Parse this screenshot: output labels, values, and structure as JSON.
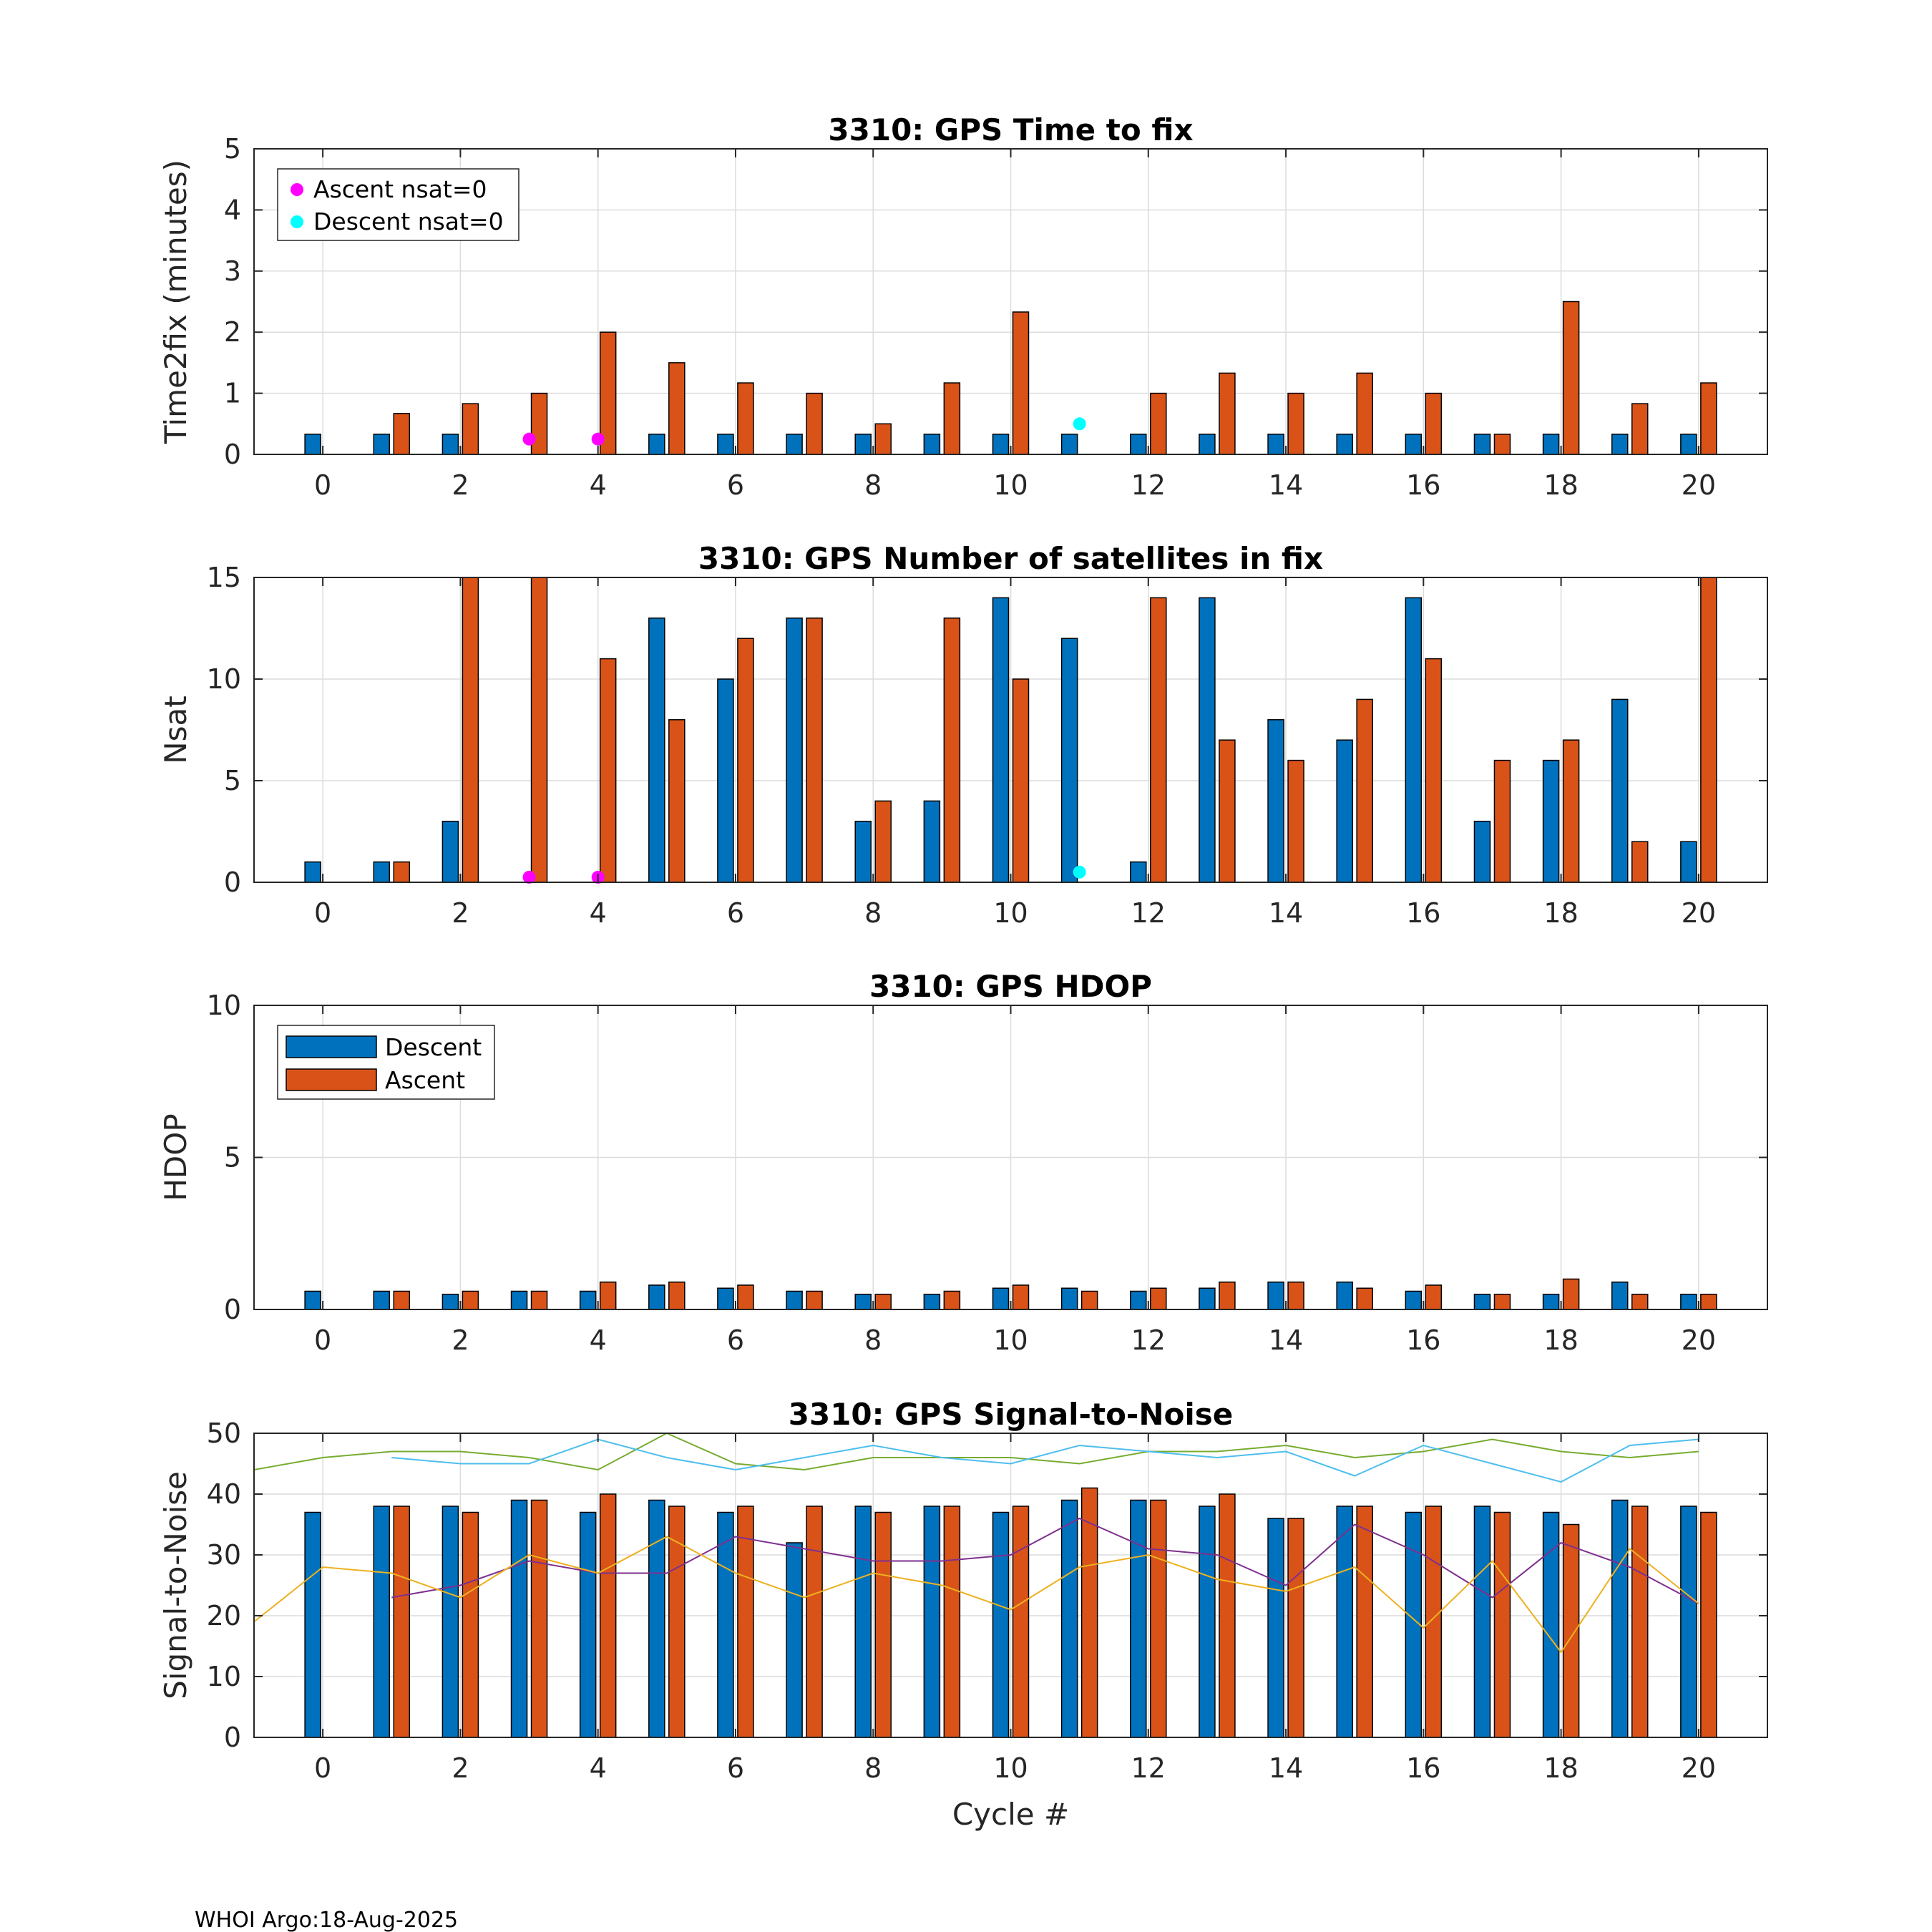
{
  "footer": "WHOI Argo:18-Aug-2025",
  "colors": {
    "descent": "#0072BD",
    "ascent": "#D95319",
    "magenta": "#FF00FF",
    "cyan": "#00FFFF",
    "sn_green": "#77AC30",
    "sn_cyan": "#4DBEEE",
    "sn_purple": "#7E2F8E",
    "sn_yellow": "#EDB120"
  },
  "chart_data": [
    {
      "type": "bar",
      "title": "3310: GPS Time to fix",
      "xlabel": "",
      "ylabel": "Time2fix (minutes)",
      "xlim": [
        -1,
        21
      ],
      "ylim": [
        0,
        5
      ],
      "yticks": [
        0,
        1,
        2,
        3,
        4,
        5
      ],
      "xticks": [
        0,
        2,
        4,
        6,
        8,
        10,
        12,
        14,
        16,
        18,
        20
      ],
      "x": [
        0,
        1,
        2,
        3,
        4,
        5,
        6,
        7,
        8,
        9,
        10,
        11,
        12,
        13,
        14,
        15,
        16,
        17,
        18,
        19,
        20
      ],
      "series": [
        {
          "name": "Descent",
          "values": [
            0.33,
            0.33,
            0.33,
            null,
            null,
            0.33,
            0.33,
            0.33,
            0.33,
            0.33,
            0.33,
            0.33,
            0.33,
            0.33,
            0.33,
            0.33,
            0.33,
            0.33,
            0.33,
            0.33,
            0.33
          ]
        },
        {
          "name": "Ascent",
          "values": [
            null,
            0.67,
            0.83,
            1.0,
            2.0,
            1.5,
            1.17,
            1.0,
            0.5,
            1.17,
            2.33,
            null,
            1.0,
            1.33,
            1.0,
            1.33,
            1.0,
            0.33,
            2.5,
            0.83,
            1.17
          ]
        }
      ],
      "markers": [
        {
          "name": "Ascent nsat=0",
          "color": "magenta",
          "points": [
            [
              3,
              0.25
            ],
            [
              4,
              0.25
            ]
          ]
        },
        {
          "name": "Descent nsat=0",
          "color": "cyan",
          "points": [
            [
              11,
              0.5
            ]
          ]
        }
      ],
      "legend": {
        "position": "top-left",
        "entries": [
          "Ascent nsat=0",
          "Descent nsat=0"
        ]
      }
    },
    {
      "type": "bar",
      "title": "3310: GPS Number of satellites in fix",
      "xlabel": "",
      "ylabel": "Nsat",
      "xlim": [
        -1,
        21
      ],
      "ylim": [
        0,
        15
      ],
      "yticks": [
        0,
        5,
        10,
        15
      ],
      "xticks": [
        0,
        2,
        4,
        6,
        8,
        10,
        12,
        14,
        16,
        18,
        20
      ],
      "x": [
        0,
        1,
        2,
        3,
        4,
        5,
        6,
        7,
        8,
        9,
        10,
        11,
        12,
        13,
        14,
        15,
        16,
        17,
        18,
        19,
        20
      ],
      "series": [
        {
          "name": "Descent",
          "values": [
            1,
            1,
            3,
            null,
            null,
            13,
            10,
            13,
            3,
            4,
            14,
            12,
            1,
            14,
            8,
            7,
            14,
            3,
            6,
            9,
            2
          ]
        },
        {
          "name": "Ascent",
          "values": [
            null,
            1,
            15,
            15,
            11,
            8,
            12,
            13,
            4,
            13,
            10,
            null,
            14,
            7,
            6,
            9,
            11,
            6,
            7,
            2,
            15
          ]
        }
      ],
      "markers": [
        {
          "name": "Ascent nsat=0",
          "color": "magenta",
          "points": [
            [
              3,
              0.25
            ],
            [
              4,
              0.25
            ]
          ]
        },
        {
          "name": "Descent nsat=0",
          "color": "cyan",
          "points": [
            [
              11,
              0.5
            ]
          ]
        }
      ]
    },
    {
      "type": "bar",
      "title": "3310: GPS HDOP",
      "xlabel": "",
      "ylabel": "HDOP",
      "xlim": [
        -1,
        21
      ],
      "ylim": [
        0,
        10
      ],
      "yticks": [
        0,
        5,
        10
      ],
      "xticks": [
        0,
        2,
        4,
        6,
        8,
        10,
        12,
        14,
        16,
        18,
        20
      ],
      "x": [
        0,
        1,
        2,
        3,
        4,
        5,
        6,
        7,
        8,
        9,
        10,
        11,
        12,
        13,
        14,
        15,
        16,
        17,
        18,
        19,
        20
      ],
      "series": [
        {
          "name": "Descent",
          "values": [
            0.6,
            0.6,
            0.5,
            0.6,
            0.6,
            0.8,
            0.7,
            0.6,
            0.5,
            0.5,
            0.7,
            0.7,
            0.6,
            0.7,
            0.9,
            0.9,
            0.6,
            0.5,
            0.5,
            0.9,
            0.5
          ]
        },
        {
          "name": "Ascent",
          "values": [
            null,
            0.6,
            0.6,
            0.6,
            0.9,
            0.9,
            0.8,
            0.6,
            0.5,
            0.6,
            0.8,
            0.6,
            0.7,
            0.9,
            0.9,
            0.7,
            0.8,
            0.5,
            1.0,
            0.5,
            0.5
          ]
        }
      ],
      "legend": {
        "position": "top-left",
        "entries": [
          "Descent",
          "Ascent"
        ]
      }
    },
    {
      "type": "bar",
      "title": "3310: GPS Signal-to-Noise",
      "xlabel": "Cycle #",
      "ylabel": "Signal-to-Noise",
      "xlim": [
        -1,
        21
      ],
      "ylim": [
        0,
        50
      ],
      "yticks": [
        0,
        10,
        20,
        30,
        40,
        50
      ],
      "xticks": [
        0,
        2,
        4,
        6,
        8,
        10,
        12,
        14,
        16,
        18,
        20
      ],
      "x": [
        0,
        1,
        2,
        3,
        4,
        5,
        6,
        7,
        8,
        9,
        10,
        11,
        12,
        13,
        14,
        15,
        16,
        17,
        18,
        19,
        20
      ],
      "series": [
        {
          "name": "Descent",
          "values": [
            37,
            38,
            38,
            39,
            37,
            39,
            37,
            32,
            38,
            38,
            37,
            39,
            39,
            38,
            36,
            38,
            37,
            38,
            37,
            39,
            38
          ]
        },
        {
          "name": "Ascent",
          "values": [
            null,
            38,
            37,
            39,
            40,
            38,
            38,
            38,
            37,
            38,
            38,
            41,
            39,
            40,
            36,
            38,
            38,
            37,
            35,
            38,
            37
          ]
        }
      ],
      "lines": [
        {
          "name": "green",
          "color": "sn_green",
          "x": [
            -1,
            0,
            1,
            2,
            3,
            4,
            5,
            6,
            7,
            8,
            9,
            10,
            11,
            12,
            13,
            14,
            15,
            16,
            17,
            18,
            19,
            20
          ],
          "values": [
            44,
            46,
            47,
            47,
            46,
            44,
            50,
            45,
            44,
            46,
            46,
            46,
            45,
            47,
            47,
            48,
            46,
            47,
            49,
            47,
            46,
            47
          ]
        },
        {
          "name": "cyan",
          "color": "sn_cyan",
          "x": [
            1,
            2,
            3,
            4,
            5,
            6,
            7,
            8,
            9,
            10,
            11,
            12,
            13,
            14,
            15,
            16,
            17,
            18,
            19,
            20
          ],
          "values": [
            46,
            45,
            45,
            49,
            46,
            44,
            46,
            48,
            46,
            45,
            48,
            47,
            46,
            47,
            43,
            48,
            45,
            42,
            48,
            49
          ]
        },
        {
          "name": "purple",
          "color": "sn_purple",
          "x": [
            1,
            2,
            3,
            4,
            5,
            6,
            7,
            8,
            9,
            10,
            11,
            12,
            13,
            14,
            15,
            16,
            17,
            18,
            19,
            20
          ],
          "values": [
            23,
            25,
            29,
            27,
            27,
            33,
            31,
            29,
            29,
            30,
            36,
            31,
            30,
            25,
            35,
            30,
            23,
            32,
            28,
            22
          ]
        },
        {
          "name": "yellow",
          "color": "sn_yellow",
          "x": [
            -1,
            0,
            1,
            2,
            3,
            4,
            5,
            6,
            7,
            8,
            9,
            10,
            11,
            12,
            13,
            14,
            15,
            16,
            17,
            18,
            19,
            20
          ],
          "values": [
            19,
            28,
            27,
            23,
            30,
            27,
            33,
            27,
            23,
            27,
            25,
            21,
            28,
            30,
            26,
            24,
            28,
            18,
            29,
            14,
            31,
            22
          ]
        }
      ]
    }
  ]
}
